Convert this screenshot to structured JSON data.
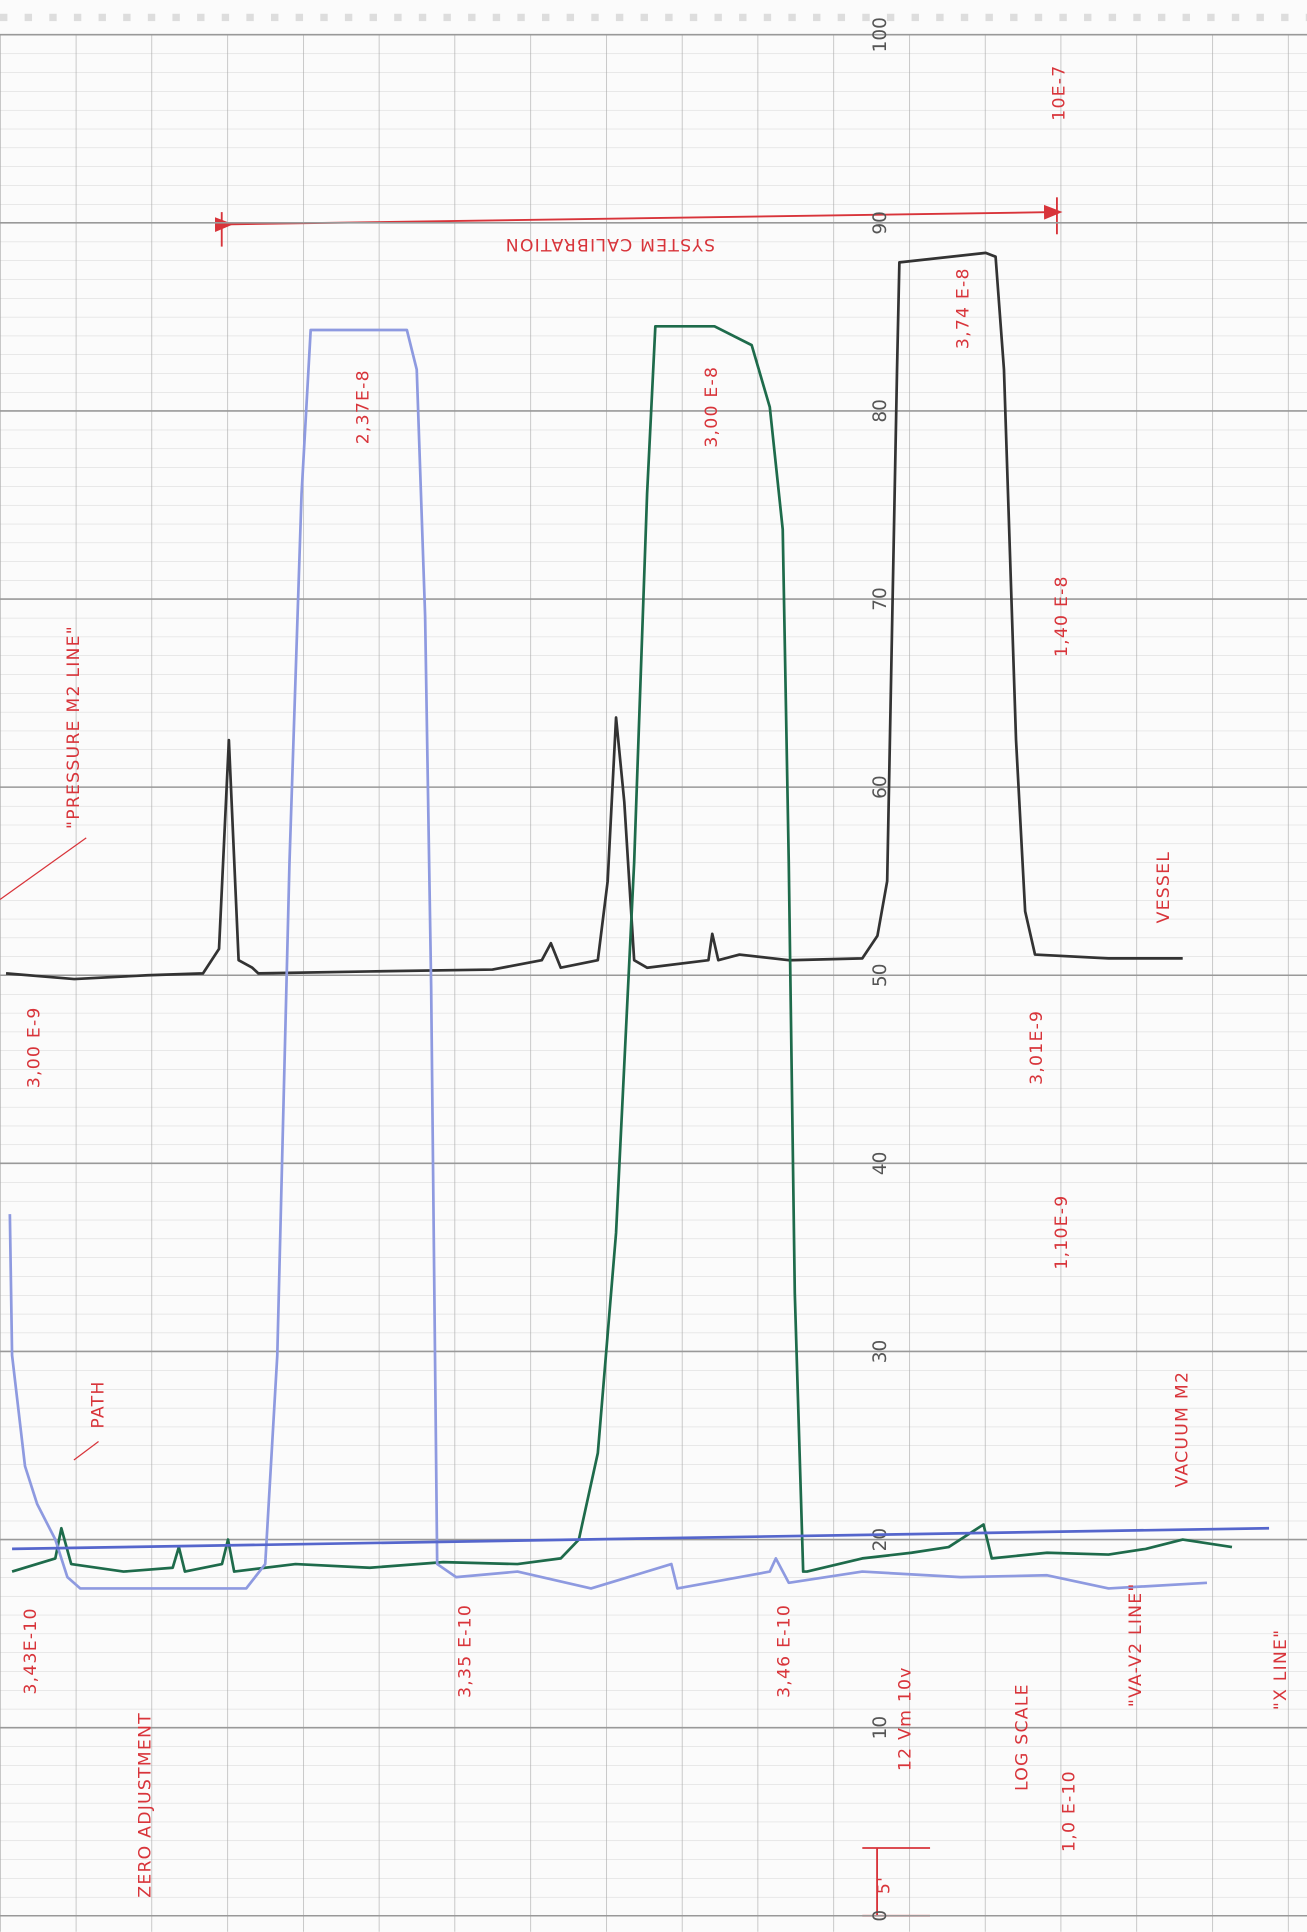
{
  "chart_data": {
    "type": "line",
    "ylim": [
      0,
      100
    ],
    "yticks": [
      0,
      10,
      20,
      30,
      40,
      50,
      60,
      70,
      80,
      90,
      100
    ],
    "xlim": [
      0,
      17.25
    ],
    "grid": true,
    "series": [
      {
        "color": "#333333",
        "x": [
          0.08,
          0.98,
          1.95,
          2.68,
          2.89,
          3.02,
          3.15,
          3.33,
          3.41,
          4.88,
          6.5,
          7.15,
          7.27,
          7.4,
          7.89,
          8.02,
          8.13,
          8.24,
          8.37,
          8.54,
          9.35,
          9.4,
          9.48,
          9.76,
          10.41,
          11.38,
          11.58,
          11.71,
          11.84,
          11.87,
          13.01,
          13.14,
          13.25,
          13.41,
          13.53,
          13.66,
          14.63,
          15.61
        ],
        "values": [
          50.1,
          49.8,
          50.0,
          50.1,
          51.4,
          62.5,
          50.8,
          50.4,
          50.1,
          50.2,
          50.3,
          50.8,
          51.7,
          50.4,
          50.8,
          55.0,
          63.7,
          59.2,
          50.8,
          50.4,
          50.8,
          52.2,
          50.8,
          51.1,
          50.8,
          50.9,
          52.1,
          55.0,
          82.2,
          87.9,
          88.4,
          88.2,
          82.2,
          62.5,
          53.4,
          51.1,
          50.9,
          50.9
        ]
      },
      {
        "color": "#1e6b4b",
        "x": [
          0.16,
          0.73,
          0.81,
          0.94,
          1.63,
          2.28,
          2.36,
          2.44,
          2.93,
          3.01,
          3.09,
          3.9,
          4.88,
          5.85,
          6.83,
          7.4,
          7.64,
          7.89,
          8.13,
          8.37,
          8.54,
          8.65,
          9.43,
          9.92,
          10.16,
          10.33,
          10.41,
          10.49,
          10.6,
          10.65,
          11.38,
          12.03,
          12.52,
          12.98,
          13.09,
          13.82,
          14.63,
          15.12,
          15.61,
          16.26
        ],
        "values": [
          18.3,
          19.0,
          20.6,
          18.7,
          18.3,
          18.5,
          19.6,
          18.3,
          18.7,
          20.0,
          18.3,
          18.7,
          18.5,
          18.8,
          18.7,
          19.0,
          20.0,
          24.6,
          36.3,
          56.0,
          75.6,
          84.5,
          84.5,
          83.5,
          80.2,
          73.7,
          56.0,
          33.1,
          18.3,
          18.3,
          19.0,
          19.3,
          19.6,
          20.8,
          19.0,
          19.3,
          19.2,
          19.5,
          20.0,
          19.6
        ]
      },
      {
        "color": "#8e9ae0",
        "x": [
          0.13,
          0.16,
          0.33,
          0.49,
          0.73,
          0.89,
          1.06,
          1.63,
          2.76,
          3.25,
          3.5,
          3.66,
          3.82,
          3.98,
          4.1,
          5.37,
          5.5,
          5.61,
          5.69,
          5.77,
          6.02,
          6.83,
          7.8,
          8.86,
          8.94,
          10.16,
          10.24,
          10.41,
          11.38,
          12.68,
          13.82,
          14.63,
          15.93
        ],
        "values": [
          37.3,
          29.8,
          23.9,
          21.9,
          20.0,
          18.0,
          17.4,
          17.4,
          17.4,
          17.4,
          18.7,
          29.8,
          56.0,
          75.6,
          84.3,
          84.3,
          82.2,
          69.1,
          49.4,
          18.7,
          18.0,
          18.3,
          17.4,
          18.7,
          17.4,
          18.3,
          19.0,
          17.7,
          18.3,
          18.0,
          18.1,
          17.4,
          17.7
        ]
      },
      {
        "color": "#5566cc",
        "x": [
          0.16,
          16.75
        ],
        "values": [
          19.5,
          20.6
        ]
      }
    ],
    "annotations": [
      "SYSTEM CALIBRATION",
      "2,37E-8",
      "3,00 E-8",
      "3,74 E-8",
      "1,40 E-8",
      "VESSEL",
      "10E-7",
      "\"PRESSURE M2 LINE\"",
      "3,00 E-9",
      "3,01E-9",
      "1,10E-9",
      "VACUUM M2",
      "PATH",
      "3,43E-10",
      "3,35 E-10",
      "3,46 E-10",
      "ZERO ADJUSTMENT",
      "12 Vm 10v",
      "LOG SCALE",
      "1,0 E-10",
      "\"VA-V2 LINE\"",
      "\"X LINE\"",
      "5'"
    ]
  }
}
